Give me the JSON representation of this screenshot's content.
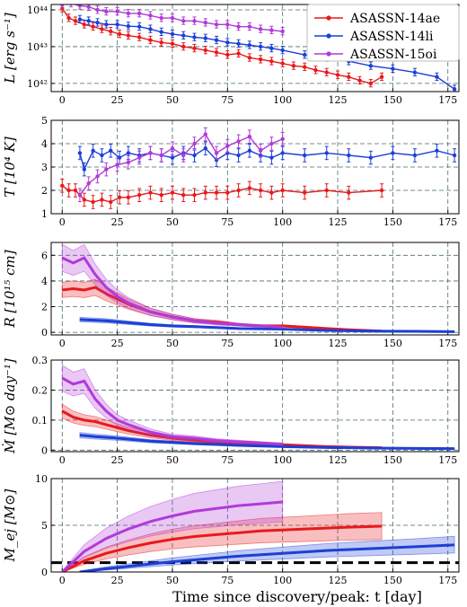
{
  "colors": {
    "ASASSN-14ae": "#e8191c",
    "ASASSN-14li": "#1c3fd6",
    "ASASSN-15oi": "#b03ad9"
  },
  "xlabel": "Time since discovery/peak: t [day]",
  "legend": [
    "ASASSN-14ae",
    "ASASSN-14li",
    "ASASSN-15oi"
  ],
  "chart_data": [
    {
      "type": "line",
      "panel": "L",
      "ylabel": "L [erg s⁻¹]",
      "yscale": "log",
      "xlim": [
        -5,
        180
      ],
      "ylim": [
        6e+41,
        1.4e+44
      ],
      "xticks": [
        0,
        25,
        50,
        75,
        100,
        125,
        150,
        175
      ],
      "yticks": [
        {
          "v": 1e+42,
          "label": "10⁴²"
        },
        {
          "v": 1e+43,
          "label": "10⁴³"
        },
        {
          "v": 1e+44,
          "label": "10⁴⁴"
        }
      ],
      "legend_loc": "top-right",
      "series": [
        {
          "name": "ASASSN-14ae",
          "x": [
            0,
            3,
            6,
            10,
            14,
            18,
            22,
            26,
            30,
            35,
            40,
            45,
            50,
            55,
            60,
            65,
            70,
            75,
            80,
            85,
            90,
            95,
            100,
            105,
            110,
            115,
            120,
            125,
            130,
            135,
            140,
            145
          ],
          "y": [
            1.1e+44,
            6e+43,
            5e+43,
            4e+43,
            3.5e+43,
            3e+43,
            2.6e+43,
            2.2e+43,
            2e+43,
            1.8e+43,
            1.5e+43,
            1.3e+43,
            1.2e+43,
            1e+43,
            9e+42,
            8e+42,
            7e+42,
            6e+42,
            6.5e+42,
            5e+42,
            4.5e+42,
            4e+42,
            3.5e+42,
            3e+42,
            2.8e+42,
            2.3e+42,
            2e+42,
            1.7e+42,
            1.5e+42,
            1.2e+42,
            1e+42,
            1.5e+42
          ]
        },
        {
          "name": "ASASSN-14li",
          "x": [
            8,
            12,
            16,
            20,
            25,
            30,
            35,
            40,
            45,
            50,
            55,
            60,
            65,
            70,
            75,
            80,
            85,
            90,
            95,
            100,
            110,
            120,
            130,
            140,
            150,
            160,
            170,
            178
          ],
          "y": [
            5.5e+43,
            5e+43,
            4.5e+43,
            4e+43,
            4e+43,
            3.6e+43,
            3.5e+43,
            3e+43,
            2.5e+43,
            2.2e+43,
            2e+43,
            1.8e+43,
            1.7e+43,
            1.5e+43,
            1.3e+43,
            1.2e+43,
            1.1e+43,
            1e+43,
            9e+42,
            8e+42,
            6e+42,
            5e+42,
            4e+42,
            3e+42,
            2.5e+42,
            2e+42,
            1.5e+42,
            7e+41
          ]
        },
        {
          "name": "ASASSN-15oi",
          "x": [
            0,
            4,
            8,
            12,
            16,
            20,
            25,
            30,
            35,
            40,
            45,
            50,
            55,
            60,
            65,
            70,
            75,
            80,
            85,
            90,
            95,
            100
          ],
          "y": [
            1.4e+44,
            1.5e+44,
            1.3e+44,
            1.2e+44,
            1e+44,
            9e+43,
            9e+43,
            8e+43,
            8e+43,
            7e+43,
            6e+43,
            6e+43,
            5e+43,
            5e+43,
            4.5e+43,
            4e+43,
            4e+43,
            3.5e+43,
            3.5e+43,
            3e+43,
            2.8e+43,
            2.6e+43
          ]
        }
      ]
    },
    {
      "type": "line",
      "panel": "T",
      "ylabel": "T [10⁴ K]",
      "xlim": [
        -5,
        180
      ],
      "ylim": [
        1,
        5
      ],
      "xticks": [
        0,
        25,
        50,
        75,
        100,
        125,
        150,
        175
      ],
      "yticks": [
        1,
        2,
        3,
        4,
        5
      ],
      "series": [
        {
          "name": "ASASSN-14ae",
          "x": [
            0,
            3,
            6,
            10,
            14,
            18,
            22,
            26,
            30,
            35,
            40,
            45,
            50,
            55,
            60,
            65,
            70,
            75,
            80,
            85,
            90,
            95,
            100,
            110,
            120,
            130,
            145
          ],
          "y": [
            2.2,
            2.0,
            2.0,
            1.6,
            1.5,
            1.6,
            1.5,
            1.7,
            1.7,
            1.8,
            1.9,
            1.8,
            1.9,
            1.8,
            1.8,
            1.9,
            1.9,
            1.9,
            2.0,
            2.1,
            2.0,
            1.9,
            2.0,
            1.9,
            2.0,
            1.9,
            2.0
          ]
        },
        {
          "name": "ASASSN-14li",
          "x": [
            8,
            10,
            14,
            18,
            22,
            26,
            30,
            35,
            40,
            45,
            50,
            55,
            60,
            65,
            70,
            75,
            80,
            85,
            90,
            95,
            100,
            110,
            120,
            130,
            140,
            150,
            160,
            170,
            178
          ],
          "y": [
            3.6,
            2.9,
            3.7,
            3.5,
            3.7,
            3.4,
            3.6,
            3.5,
            3.6,
            3.5,
            3.4,
            3.6,
            3.5,
            3.8,
            3.3,
            3.6,
            3.5,
            3.7,
            3.5,
            3.4,
            3.6,
            3.5,
            3.6,
            3.5,
            3.4,
            3.6,
            3.5,
            3.7,
            3.5
          ]
        },
        {
          "name": "ASASSN-15oi",
          "x": [
            8,
            12,
            16,
            20,
            25,
            30,
            35,
            40,
            45,
            50,
            55,
            60,
            65,
            70,
            75,
            80,
            85,
            90,
            95,
            100
          ],
          "y": [
            1.8,
            2.3,
            2.6,
            2.9,
            3.1,
            3.2,
            3.4,
            3.6,
            3.5,
            3.8,
            3.5,
            4.0,
            4.4,
            3.6,
            3.9,
            4.1,
            4.3,
            3.7,
            4.0,
            4.2
          ]
        }
      ]
    },
    {
      "type": "area",
      "panel": "R",
      "ylabel": "R [10¹⁵ cm]",
      "xlim": [
        -5,
        180
      ],
      "ylim": [
        -0.2,
        7
      ],
      "xticks": [
        0,
        25,
        50,
        75,
        100,
        125,
        150,
        175
      ],
      "yticks": [
        0,
        2,
        4,
        6
      ],
      "series": [
        {
          "name": "ASASSN-14ae",
          "x": [
            0,
            5,
            10,
            15,
            20,
            25,
            30,
            40,
            50,
            60,
            70,
            80,
            90,
            100,
            110,
            120,
            130,
            145
          ],
          "y": [
            3.3,
            3.4,
            3.3,
            3.5,
            3.0,
            2.6,
            2.2,
            1.6,
            1.2,
            0.9,
            0.8,
            0.6,
            0.5,
            0.5,
            0.4,
            0.3,
            0.2,
            0.1
          ]
        },
        {
          "name": "ASASSN-14li",
          "x": [
            8,
            20,
            30,
            40,
            50,
            60,
            80,
            100,
            120,
            140,
            160,
            178
          ],
          "y": [
            1.0,
            0.9,
            0.75,
            0.6,
            0.5,
            0.45,
            0.3,
            0.25,
            0.15,
            0.1,
            0.08,
            0.05
          ]
        },
        {
          "name": "ASASSN-15oi",
          "x": [
            0,
            5,
            10,
            15,
            20,
            25,
            30,
            40,
            50,
            60,
            70,
            80,
            90,
            100
          ],
          "y": [
            5.8,
            5.4,
            5.8,
            4.5,
            3.5,
            2.8,
            2.3,
            1.6,
            1.2,
            0.9,
            0.7,
            0.6,
            0.5,
            0.4
          ]
        }
      ]
    },
    {
      "type": "area",
      "panel": "Mdot",
      "ylabel": "Ṁ [M⊙ day⁻¹]",
      "xlim": [
        -5,
        180
      ],
      "ylim": [
        -0.005,
        0.3
      ],
      "xticks": [
        0,
        25,
        50,
        75,
        100,
        125,
        150,
        175
      ],
      "yticks": [
        0.0,
        0.1,
        0.2,
        0.3
      ],
      "series": [
        {
          "name": "ASASSN-14ae",
          "x": [
            0,
            5,
            10,
            15,
            20,
            25,
            30,
            40,
            50,
            60,
            70,
            80,
            90,
            100,
            110,
            120,
            130,
            145
          ],
          "y": [
            0.13,
            0.11,
            0.1,
            0.095,
            0.085,
            0.075,
            0.065,
            0.05,
            0.04,
            0.033,
            0.028,
            0.023,
            0.02,
            0.018,
            0.015,
            0.012,
            0.01,
            0.008
          ]
        },
        {
          "name": "ASASSN-14li",
          "x": [
            8,
            15,
            25,
            40,
            60,
            80,
            100,
            120,
            140,
            160,
            178
          ],
          "y": [
            0.05,
            0.045,
            0.04,
            0.03,
            0.022,
            0.016,
            0.012,
            0.009,
            0.007,
            0.006,
            0.005
          ]
        },
        {
          "name": "ASASSN-15oi",
          "x": [
            0,
            5,
            10,
            15,
            20,
            25,
            30,
            40,
            50,
            60,
            70,
            80,
            90,
            100
          ],
          "y": [
            0.24,
            0.22,
            0.23,
            0.17,
            0.13,
            0.1,
            0.085,
            0.06,
            0.045,
            0.04,
            0.032,
            0.028,
            0.024,
            0.02
          ]
        }
      ]
    },
    {
      "type": "area",
      "panel": "Mej",
      "ylabel": "M_ej [M⊙]",
      "xlim": [
        -5,
        180
      ],
      "ylim": [
        0,
        10
      ],
      "xticks": [
        0,
        25,
        50,
        75,
        100,
        125,
        150,
        175
      ],
      "yticks": [
        0,
        5,
        10
      ],
      "reference_line": 1,
      "series": [
        {
          "name": "ASASSN-14ae",
          "x": [
            0,
            10,
            20,
            30,
            40,
            50,
            60,
            70,
            80,
            90,
            100,
            110,
            120,
            130,
            145
          ],
          "y": [
            0,
            1.2,
            2.0,
            2.6,
            3.1,
            3.5,
            3.8,
            4.0,
            4.2,
            4.4,
            4.5,
            4.6,
            4.7,
            4.8,
            4.9
          ]
        },
        {
          "name": "ASASSN-14li",
          "x": [
            8,
            20,
            30,
            40,
            50,
            60,
            80,
            100,
            120,
            140,
            160,
            178
          ],
          "y": [
            0,
            0.35,
            0.6,
            0.85,
            1.1,
            1.3,
            1.7,
            2.0,
            2.3,
            2.5,
            2.7,
            2.9
          ]
        },
        {
          "name": "ASASSN-15oi",
          "x": [
            0,
            10,
            20,
            30,
            40,
            50,
            60,
            70,
            80,
            90,
            100
          ],
          "y": [
            0,
            2.2,
            3.6,
            4.6,
            5.4,
            6.0,
            6.5,
            6.8,
            7.1,
            7.3,
            7.5
          ]
        }
      ]
    }
  ]
}
